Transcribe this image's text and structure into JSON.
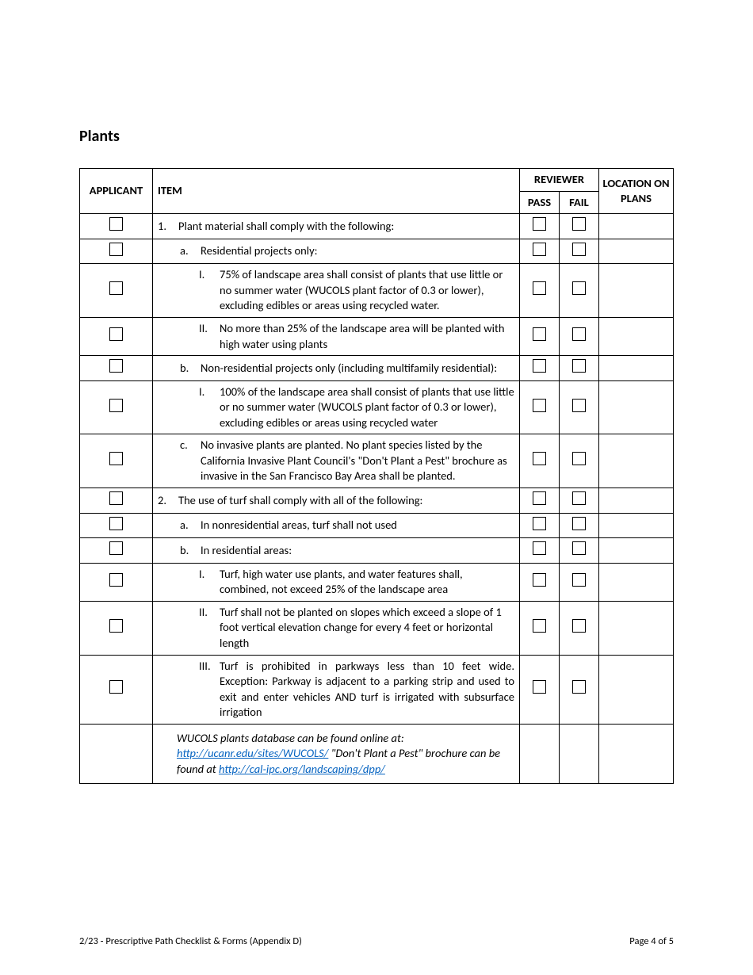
{
  "section_title": "Plants",
  "headers": {
    "applicant": "APPLICANT",
    "item": "ITEM",
    "reviewer": "REVIEWER",
    "location": "LOCATION ON PLANS",
    "pass": "PASS",
    "fail": "FAIL"
  },
  "rows": [
    {
      "indent": 0,
      "marker": "1.",
      "text": "Plant material shall comply with the following:",
      "app_cb": true,
      "pass_cb": true,
      "fail_cb": true
    },
    {
      "indent": 1,
      "marker": "a.",
      "text": "Residential projects only:",
      "app_cb": true,
      "pass_cb": true,
      "fail_cb": true
    },
    {
      "indent": 2,
      "marker": "I.",
      "text": "75% of landscape area shall consist of plants that use little or no summer water (WUCOLS plant factor of 0.3 or lower), excluding edibles or areas using recycled water.",
      "app_cb": true,
      "pass_cb": true,
      "fail_cb": true
    },
    {
      "indent": 2,
      "marker": "II.",
      "text": "No more than 25% of the landscape area will be planted with high water using plants",
      "app_cb": true,
      "pass_cb": true,
      "fail_cb": true
    },
    {
      "indent": 1,
      "marker": "b.",
      "text": "Non-residential projects only (including multifamily residential):",
      "app_cb": true,
      "pass_cb": true,
      "fail_cb": true,
      "tight": true
    },
    {
      "indent": 2,
      "marker": "I.",
      "text": "100% of the landscape area shall consist of plants that use little or no summer water (WUCOLS plant factor of 0.3 or lower), excluding edibles or areas using recycled water",
      "app_cb": true,
      "pass_cb": true,
      "fail_cb": true
    },
    {
      "indent": 1,
      "marker": "c.",
      "text": "No invasive plants are planted. No plant species listed by the California Invasive Plant Council's \"Don't Plant a Pest\" brochure as invasive in the San Francisco Bay Area shall be planted.",
      "app_cb": true,
      "pass_cb": true,
      "fail_cb": true
    },
    {
      "indent": 0,
      "marker": "2.",
      "text": "The use of turf shall comply with all of the following:",
      "app_cb": true,
      "pass_cb": true,
      "fail_cb": true
    },
    {
      "indent": 1,
      "marker": "a.",
      "text": "In nonresidential areas, turf shall not used",
      "app_cb": true,
      "pass_cb": true,
      "fail_cb": true
    },
    {
      "indent": 1,
      "marker": "b.",
      "text": "In residential areas:",
      "app_cb": true,
      "pass_cb": true,
      "fail_cb": true
    },
    {
      "indent": 2,
      "marker": "I.",
      "text": "Turf, high water use plants, and water features shall, combined, not exceed 25% of the landscape area",
      "app_cb": true,
      "pass_cb": true,
      "fail_cb": true
    },
    {
      "indent": 2,
      "marker": "II.",
      "text": "Turf shall not be planted on slopes which exceed a slope of 1 foot vertical elevation change for every 4 feet or horizontal length",
      "app_cb": true,
      "pass_cb": true,
      "fail_cb": true
    },
    {
      "indent": 2,
      "marker": "III.",
      "text": "Turf is prohibited in parkways less than 10 feet wide. Exception: Parkway is adjacent to a parking strip and used to exit and enter vehicles AND turf is irrigated with subsurface irrigation",
      "app_cb": true,
      "pass_cb": true,
      "fail_cb": true,
      "justify": true
    }
  ],
  "note": {
    "line1_prefix": "WUCOLS plants database can be found online at:",
    "link1_text": "http://ucanr.edu/sites/WUCOLS/",
    "line2_mid": " \"Don't Plant a Pest\" brochure can be found at ",
    "link2_text": "http://cal-ipc.org/landscaping/dpp/"
  },
  "footer": {
    "left": "2/23 - Prescriptive Path Checklist & Forms (Appendix D)",
    "right": "Page 4 of 5"
  }
}
